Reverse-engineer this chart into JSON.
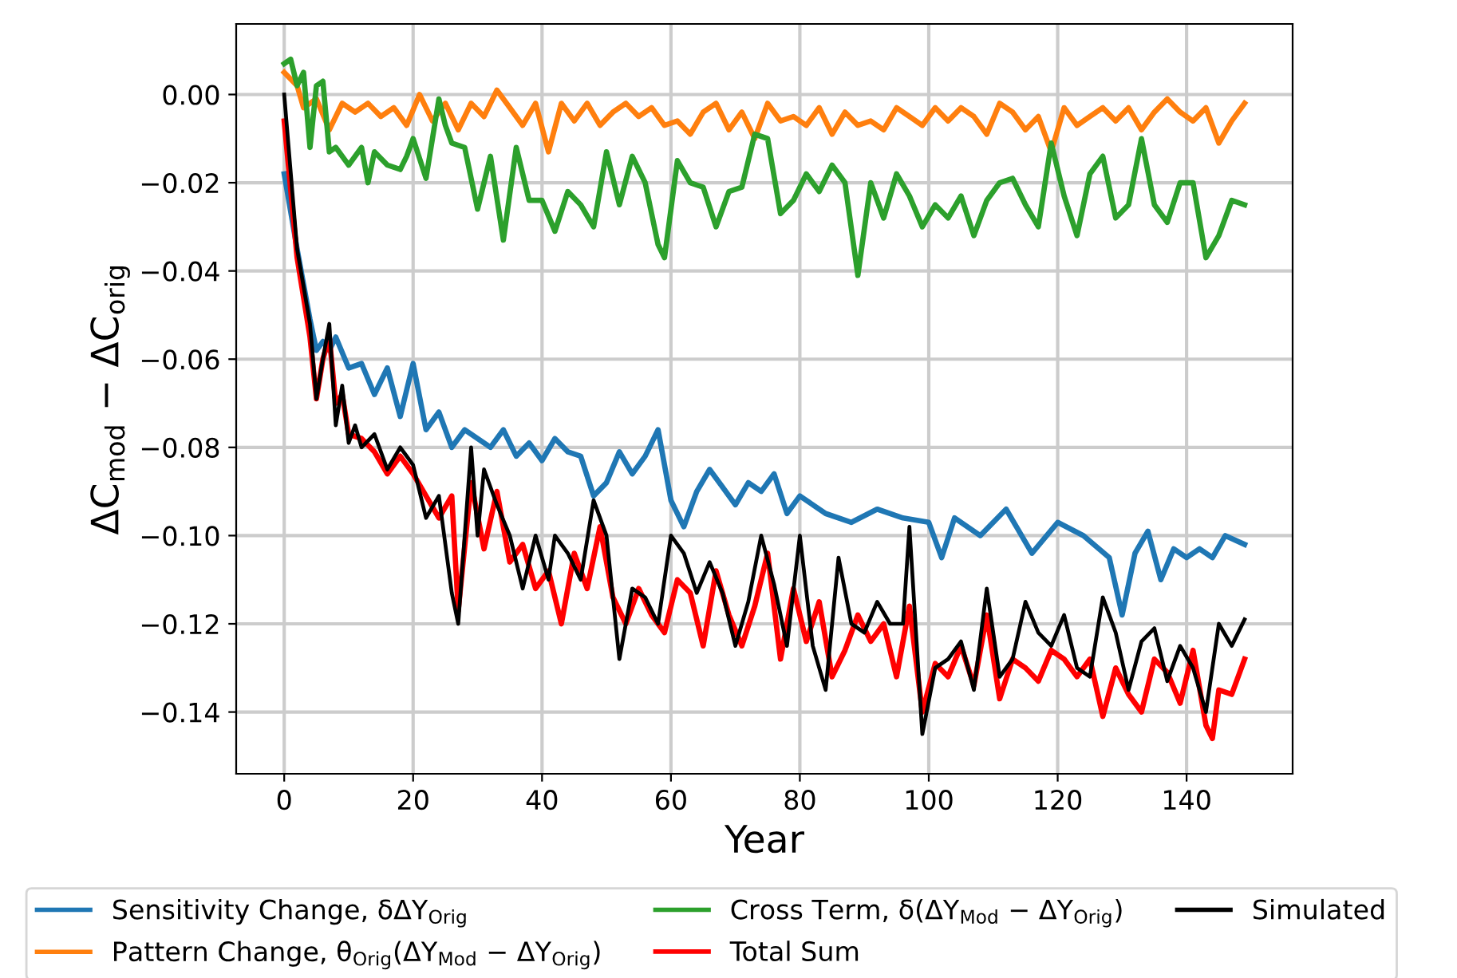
{
  "chart_data": {
    "type": "line",
    "xlabel": "Year",
    "ylabel": "ΔC$_{mod}$ − ΔC$_{orig}$",
    "xlim": [
      -7.45,
      156.45
    ],
    "xticks": [
      0,
      20,
      40,
      60,
      80,
      100,
      120,
      140
    ],
    "ylim": [
      -0.154,
      0.016
    ],
    "yticks": [
      {
        "value": 0,
        "label": "0.00"
      },
      {
        "value": -0.02,
        "label": "−0.02"
      },
      {
        "value": -0.04,
        "label": "−0.04"
      },
      {
        "value": -0.06,
        "label": "−0.06"
      },
      {
        "value": -0.08,
        "label": "−0.08"
      },
      {
        "value": -0.1,
        "label": "−0.10"
      },
      {
        "value": -0.12,
        "label": "−0.12"
      },
      {
        "value": -0.14,
        "label": "−0.14"
      }
    ],
    "grid": true,
    "legend": "bottom",
    "line_style": "solid",
    "marker": "none",
    "series": [
      {
        "name": "Sensitivity Change, δΔY$_{Orig}$",
        "color": "#1f77b4",
        "x": [
          0,
          2,
          4,
          5,
          6,
          7,
          8,
          10,
          12,
          14,
          16,
          18,
          20,
          22,
          24,
          26,
          28,
          30,
          32,
          34,
          36,
          38,
          40,
          42,
          44,
          46,
          48,
          50,
          52,
          54,
          56,
          58,
          60,
          62,
          64,
          66,
          68,
          70,
          72,
          74,
          76,
          78,
          80,
          84,
          88,
          92,
          96,
          100,
          102,
          104,
          108,
          112,
          116,
          120,
          124,
          128,
          130,
          132,
          134,
          136,
          138,
          140,
          142,
          144,
          146,
          149
        ],
        "values": [
          -0.018,
          -0.035,
          -0.051,
          -0.058,
          -0.056,
          -0.058,
          -0.055,
          -0.062,
          -0.061,
          -0.068,
          -0.062,
          -0.073,
          -0.061,
          -0.076,
          -0.072,
          -0.08,
          -0.076,
          -0.078,
          -0.08,
          -0.076,
          -0.082,
          -0.079,
          -0.083,
          -0.078,
          -0.081,
          -0.082,
          -0.091,
          -0.088,
          -0.081,
          -0.086,
          -0.082,
          -0.076,
          -0.092,
          -0.098,
          -0.09,
          -0.085,
          -0.089,
          -0.093,
          -0.088,
          -0.09,
          -0.086,
          -0.095,
          -0.091,
          -0.095,
          -0.097,
          -0.094,
          -0.096,
          -0.097,
          -0.105,
          -0.096,
          -0.1,
          -0.094,
          -0.104,
          -0.097,
          -0.1,
          -0.105,
          -0.118,
          -0.104,
          -0.099,
          -0.11,
          -0.103,
          -0.105,
          -0.103,
          -0.105,
          -0.1,
          -0.102
        ]
      },
      {
        "name": "Pattern Change, θ$_{Orig}$(ΔY$_{Mod}$ − ΔY$_{Orig}$)",
        "color": "#ff7f0e",
        "x": [
          0,
          2,
          3,
          5,
          7,
          9,
          11,
          13,
          15,
          17,
          19,
          21,
          23,
          25,
          27,
          29,
          31,
          33,
          35,
          37,
          39,
          41,
          43,
          45,
          47,
          49,
          51,
          53,
          55,
          57,
          59,
          61,
          63,
          65,
          67,
          69,
          71,
          73,
          75,
          77,
          79,
          81,
          83,
          85,
          87,
          89,
          91,
          93,
          95,
          97,
          99,
          101,
          103,
          105,
          107,
          109,
          111,
          113,
          115,
          117,
          119,
          121,
          123,
          125,
          127,
          129,
          131,
          133,
          135,
          137,
          139,
          141,
          143,
          145,
          147,
          149
        ],
        "values": [
          0.005,
          0.002,
          -0.003,
          -0.001,
          -0.008,
          -0.002,
          -0.004,
          -0.002,
          -0.005,
          -0.003,
          -0.007,
          0.0,
          -0.006,
          -0.002,
          -0.008,
          -0.002,
          -0.005,
          0.001,
          -0.003,
          -0.007,
          -0.002,
          -0.013,
          -0.002,
          -0.006,
          -0.002,
          -0.007,
          -0.004,
          -0.002,
          -0.005,
          -0.003,
          -0.007,
          -0.006,
          -0.009,
          -0.004,
          -0.002,
          -0.008,
          -0.004,
          -0.01,
          -0.002,
          -0.006,
          -0.005,
          -0.007,
          -0.003,
          -0.009,
          -0.004,
          -0.007,
          -0.006,
          -0.008,
          -0.003,
          -0.005,
          -0.007,
          -0.003,
          -0.006,
          -0.003,
          -0.005,
          -0.009,
          -0.002,
          -0.004,
          -0.008,
          -0.005,
          -0.013,
          -0.003,
          -0.007,
          -0.005,
          -0.003,
          -0.006,
          -0.003,
          -0.008,
          -0.004,
          -0.001,
          -0.004,
          -0.006,
          -0.003,
          -0.011,
          -0.006,
          -0.002
        ]
      },
      {
        "name": "Cross Term, δ(ΔY$_{Mod}$ − ΔY$_{Orig}$)",
        "color": "#2ca02c",
        "x": [
          0,
          1,
          2,
          3,
          4,
          5,
          6,
          7,
          8,
          10,
          12,
          13,
          14,
          16,
          18,
          19,
          20,
          22,
          24,
          25,
          26,
          28,
          30,
          32,
          34,
          36,
          38,
          40,
          42,
          44,
          46,
          48,
          50,
          52,
          54,
          56,
          58,
          59,
          61,
          63,
          65,
          67,
          69,
          71,
          73,
          75,
          77,
          79,
          81,
          83,
          85,
          87,
          89,
          91,
          93,
          95,
          97,
          99,
          101,
          103,
          105,
          107,
          109,
          111,
          113,
          115,
          117,
          119,
          121,
          123,
          125,
          127,
          129,
          131,
          133,
          135,
          137,
          139,
          141,
          143,
          145,
          147,
          149
        ],
        "values": [
          0.007,
          0.008,
          0.002,
          0.005,
          -0.012,
          0.002,
          0.003,
          -0.013,
          -0.012,
          -0.016,
          -0.012,
          -0.02,
          -0.013,
          -0.016,
          -0.017,
          -0.014,
          -0.01,
          -0.019,
          -0.001,
          -0.007,
          -0.011,
          -0.012,
          -0.026,
          -0.014,
          -0.033,
          -0.012,
          -0.024,
          -0.024,
          -0.031,
          -0.022,
          -0.025,
          -0.03,
          -0.013,
          -0.025,
          -0.014,
          -0.02,
          -0.034,
          -0.037,
          -0.015,
          -0.02,
          -0.021,
          -0.03,
          -0.022,
          -0.021,
          -0.009,
          -0.01,
          -0.027,
          -0.024,
          -0.018,
          -0.022,
          -0.016,
          -0.02,
          -0.041,
          -0.02,
          -0.028,
          -0.018,
          -0.023,
          -0.03,
          -0.025,
          -0.028,
          -0.023,
          -0.032,
          -0.024,
          -0.02,
          -0.019,
          -0.025,
          -0.03,
          -0.011,
          -0.023,
          -0.032,
          -0.018,
          -0.014,
          -0.028,
          -0.025,
          -0.01,
          -0.025,
          -0.029,
          -0.02,
          -0.02,
          -0.037,
          -0.032,
          -0.024,
          -0.025
        ]
      },
      {
        "name": "Total Sum",
        "color": "#ff0000",
        "x": [
          0,
          2,
          4,
          5,
          6,
          7,
          8,
          9,
          10,
          12,
          14,
          16,
          18,
          20,
          22,
          24,
          26,
          27,
          29,
          31,
          33,
          35,
          37,
          39,
          41,
          43,
          45,
          47,
          49,
          51,
          53,
          55,
          57,
          59,
          61,
          63,
          65,
          67,
          69,
          71,
          73,
          75,
          77,
          79,
          81,
          83,
          85,
          87,
          89,
          91,
          93,
          95,
          97,
          99,
          101,
          103,
          105,
          107,
          109,
          111,
          113,
          115,
          117,
          119,
          121,
          123,
          125,
          127,
          129,
          131,
          133,
          135,
          137,
          139,
          141,
          143,
          144,
          145,
          147,
          149
        ],
        "values": [
          -0.006,
          -0.037,
          -0.055,
          -0.069,
          -0.06,
          -0.055,
          -0.07,
          -0.068,
          -0.077,
          -0.078,
          -0.081,
          -0.086,
          -0.082,
          -0.086,
          -0.091,
          -0.096,
          -0.091,
          -0.117,
          -0.088,
          -0.103,
          -0.09,
          -0.106,
          -0.102,
          -0.112,
          -0.108,
          -0.12,
          -0.104,
          -0.112,
          -0.098,
          -0.114,
          -0.12,
          -0.112,
          -0.118,
          -0.122,
          -0.11,
          -0.113,
          -0.125,
          -0.108,
          -0.118,
          -0.125,
          -0.116,
          -0.104,
          -0.128,
          -0.112,
          -0.124,
          -0.115,
          -0.132,
          -0.126,
          -0.118,
          -0.124,
          -0.12,
          -0.132,
          -0.116,
          -0.14,
          -0.129,
          -0.132,
          -0.125,
          -0.134,
          -0.118,
          -0.137,
          -0.128,
          -0.13,
          -0.133,
          -0.126,
          -0.128,
          -0.132,
          -0.128,
          -0.141,
          -0.13,
          -0.136,
          -0.14,
          -0.128,
          -0.131,
          -0.138,
          -0.126,
          -0.143,
          -0.146,
          -0.135,
          -0.136,
          -0.128
        ]
      },
      {
        "name": "Simulated",
        "color": "#000000",
        "x": [
          0,
          2,
          4,
          5,
          6,
          7,
          8,
          9,
          10,
          11,
          12,
          14,
          16,
          18,
          20,
          22,
          24,
          26,
          27,
          29,
          30,
          31,
          33,
          35,
          37,
          39,
          41,
          42,
          44,
          46,
          48,
          50,
          52,
          54,
          56,
          58,
          60,
          62,
          64,
          66,
          68,
          70,
          72,
          74,
          76,
          78,
          80,
          82,
          84,
          86,
          88,
          90,
          92,
          94,
          96,
          97,
          99,
          101,
          103,
          105,
          107,
          109,
          111,
          113,
          115,
          117,
          119,
          121,
          123,
          125,
          127,
          129,
          131,
          133,
          135,
          137,
          139,
          141,
          143,
          145,
          147,
          149
        ],
        "values": [
          0.0,
          -0.035,
          -0.052,
          -0.069,
          -0.06,
          -0.052,
          -0.075,
          -0.066,
          -0.079,
          -0.075,
          -0.08,
          -0.077,
          -0.085,
          -0.08,
          -0.084,
          -0.096,
          -0.091,
          -0.113,
          -0.12,
          -0.08,
          -0.1,
          -0.085,
          -0.093,
          -0.1,
          -0.112,
          -0.1,
          -0.11,
          -0.1,
          -0.104,
          -0.11,
          -0.092,
          -0.1,
          -0.128,
          -0.112,
          -0.114,
          -0.12,
          -0.1,
          -0.104,
          -0.113,
          -0.106,
          -0.113,
          -0.125,
          -0.115,
          -0.1,
          -0.111,
          -0.125,
          -0.1,
          -0.125,
          -0.135,
          -0.105,
          -0.12,
          -0.122,
          -0.115,
          -0.12,
          -0.12,
          -0.098,
          -0.145,
          -0.13,
          -0.128,
          -0.124,
          -0.135,
          -0.112,
          -0.132,
          -0.128,
          -0.115,
          -0.122,
          -0.125,
          -0.118,
          -0.13,
          -0.132,
          -0.114,
          -0.122,
          -0.135,
          -0.124,
          -0.121,
          -0.133,
          -0.125,
          -0.13,
          -0.14,
          -0.12,
          -0.125,
          -0.119
        ]
      }
    ]
  }
}
